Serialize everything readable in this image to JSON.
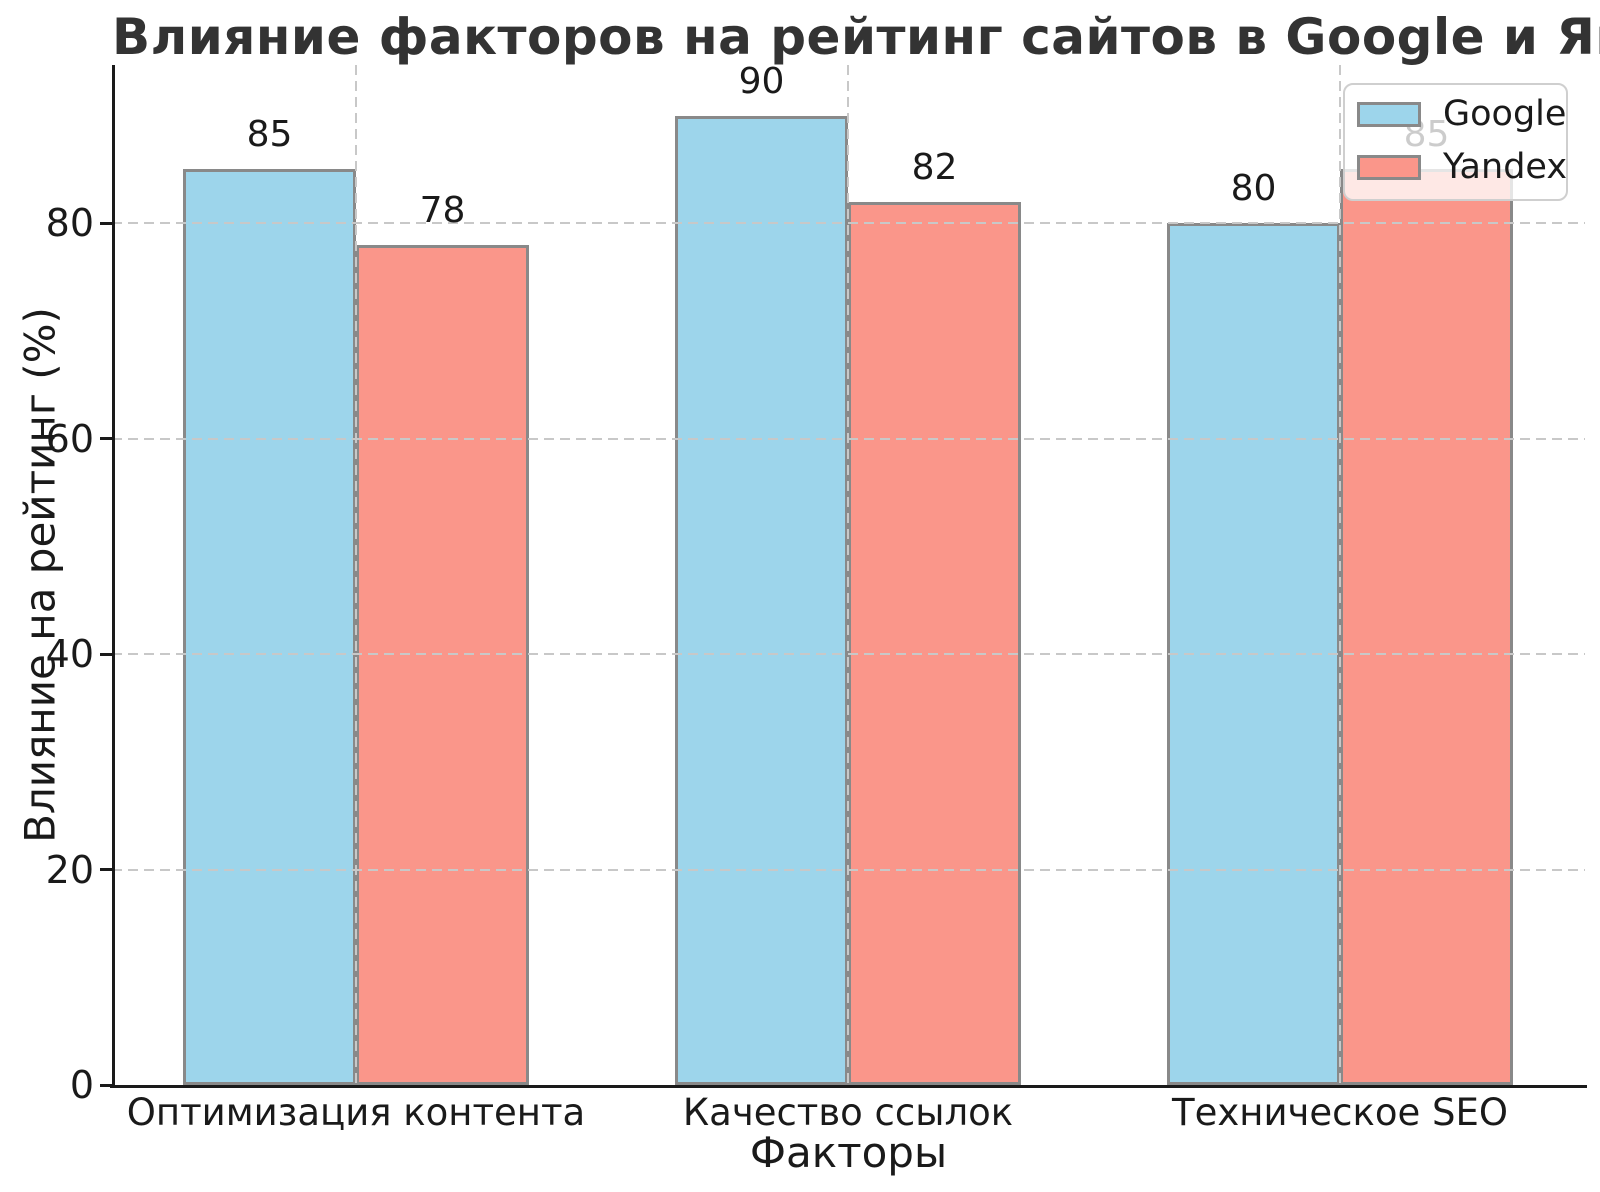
{
  "chart_data": {
    "type": "bar",
    "title": "Влияние факторов на рейтинг сайтов в Google и Яндексе",
    "xlabel": "Факторы",
    "ylabel": "Влияние на рейтинг (%)",
    "categories": [
      "Оптимизация контента",
      "Качество ссылок",
      "Техническое SEO"
    ],
    "series": [
      {
        "name": "Google",
        "color": "#9DD5EB",
        "values": [
          85,
          90,
          80
        ]
      },
      {
        "name": "Yandex",
        "color": "#FA968A",
        "values": [
          78,
          82,
          85
        ]
      }
    ],
    "ylim": [
      0,
      94.7
    ],
    "yticks": [
      0,
      20,
      40,
      60,
      80
    ],
    "grid": true,
    "grid_style": "dashed",
    "axisbelow": false,
    "legend_position": "upper right",
    "bar_edge_color": "#898989",
    "grid_color": "#c8c8c8",
    "value_labels": true
  }
}
